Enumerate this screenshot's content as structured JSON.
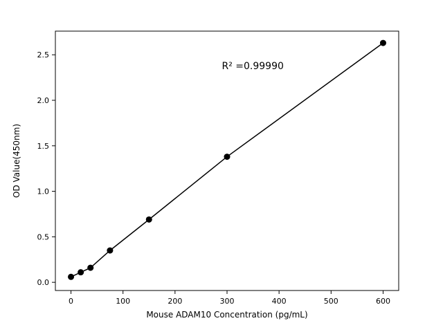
{
  "figure": {
    "background": "#ffffff"
  },
  "chart_data": {
    "type": "scatter",
    "title": "",
    "xlabel": "Mouse ADAM10 Concentration (pg/mL)",
    "ylabel": "OD Value(450nm)",
    "x": [
      0,
      18.75,
      37.5,
      75,
      150,
      300,
      600
    ],
    "y": [
      0.06,
      0.11,
      0.16,
      0.35,
      0.69,
      1.38,
      2.63
    ],
    "line_through_points": true,
    "xlim": [
      -30,
      630
    ],
    "ylim": [
      -0.09,
      2.76
    ],
    "xticks": {
      "values": [
        0,
        100,
        200,
        300,
        400,
        500,
        600
      ],
      "labels": [
        "0",
        "100",
        "200",
        "300",
        "400",
        "500",
        "600"
      ]
    },
    "yticks": {
      "values": [
        0.0,
        0.5,
        1.0,
        1.5,
        2.0,
        2.5
      ],
      "labels": [
        "0.0",
        "0.5",
        "1.0",
        "1.5",
        "2.0",
        "2.5"
      ]
    },
    "grid": false,
    "legend": null,
    "marker_color": "#000000",
    "line_color": "#000000",
    "axis_color": "#000000",
    "annotation": {
      "text": "R² =0.99990",
      "x": 290,
      "y": 2.38
    }
  }
}
